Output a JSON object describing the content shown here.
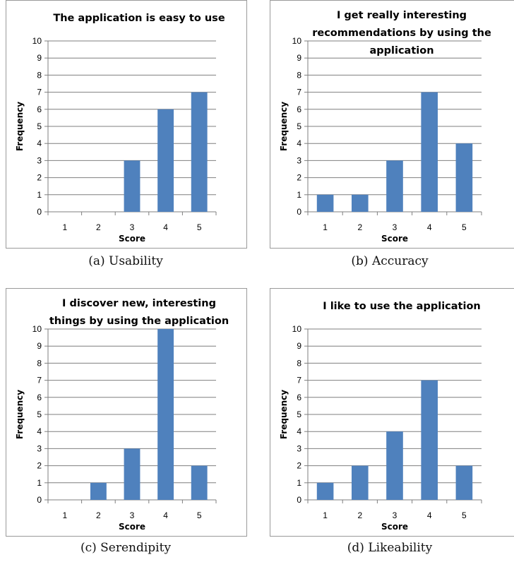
{
  "chart_data": [
    {
      "type": "bar",
      "title": [
        "The application is easy to use"
      ],
      "categories": [
        "1",
        "2",
        "3",
        "4",
        "5"
      ],
      "values": [
        0,
        0,
        3,
        6,
        7
      ],
      "xlabel": "Score",
      "ylabel": "Frequency",
      "ylim": [
        0,
        10
      ],
      "yticks": [
        "0",
        "1",
        "2",
        "3",
        "4",
        "5",
        "6",
        "7",
        "8",
        "9",
        "10"
      ],
      "grid": true,
      "bar_color": "#4f81bd",
      "caption": "(a)  Usability"
    },
    {
      "type": "bar",
      "title": [
        "I get really interesting",
        "recommendations by using the",
        "application"
      ],
      "categories": [
        "1",
        "2",
        "3",
        "4",
        "5"
      ],
      "values": [
        1,
        1,
        3,
        7,
        4
      ],
      "xlabel": "Score",
      "ylabel": "Frequency",
      "ylim": [
        0,
        10
      ],
      "yticks": [
        "0",
        "1",
        "2",
        "3",
        "4",
        "5",
        "6",
        "7",
        "8",
        "9",
        "10"
      ],
      "grid": true,
      "bar_color": "#4f81bd",
      "caption": "(b)  Accuracy"
    },
    {
      "type": "bar",
      "title": [
        "I discover new, interesting",
        "things by using the application"
      ],
      "categories": [
        "1",
        "2",
        "3",
        "4",
        "5"
      ],
      "values": [
        0,
        1,
        3,
        10,
        2
      ],
      "xlabel": "Score",
      "ylabel": "Frequency",
      "ylim": [
        0,
        10
      ],
      "yticks": [
        "0",
        "1",
        "2",
        "3",
        "4",
        "5",
        "6",
        "7",
        "8",
        "9",
        "10"
      ],
      "grid": true,
      "bar_color": "#4f81bd",
      "caption": "(c)  Serendipity"
    },
    {
      "type": "bar",
      "title": [
        "I like to use the application"
      ],
      "categories": [
        "1",
        "2",
        "3",
        "4",
        "5"
      ],
      "values": [
        1,
        2,
        4,
        7,
        2
      ],
      "xlabel": "Score",
      "ylabel": "Frequency",
      "ylim": [
        0,
        10
      ],
      "yticks": [
        "0",
        "1",
        "2",
        "3",
        "4",
        "5",
        "6",
        "7",
        "8",
        "9",
        "10"
      ],
      "grid": true,
      "bar_color": "#4f81bd",
      "caption": "(d)  Likeability"
    }
  ]
}
